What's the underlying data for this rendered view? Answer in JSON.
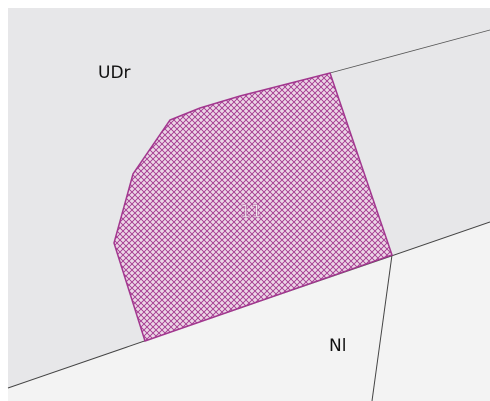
{
  "zones": {
    "upper": "UDr",
    "lower": "Nl"
  },
  "parcel": {
    "label": "11"
  }
}
